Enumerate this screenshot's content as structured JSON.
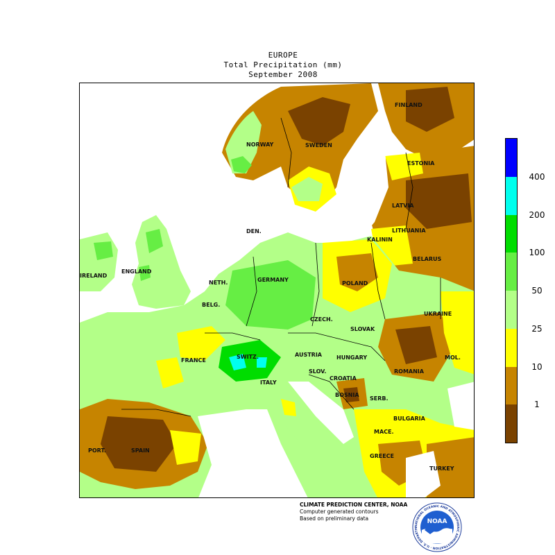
{
  "header": {
    "region": "EUROPE",
    "variable": "Total Precipitation (mm)",
    "period": "September 2008"
  },
  "legend": {
    "bins": [
      {
        "color": "#7a4200"
      },
      {
        "color": "#c68400"
      },
      {
        "color": "#ffff00"
      },
      {
        "color": "#b3ff88"
      },
      {
        "color": "#66ee44"
      },
      {
        "color": "#00dd00"
      },
      {
        "color": "#00ffee"
      },
      {
        "color": "#0000ff"
      }
    ],
    "ticks": [
      "1",
      "10",
      "25",
      "50",
      "100",
      "200",
      "400"
    ]
  },
  "countries": {
    "finland": "FINLAND",
    "norway": "NORWAY",
    "sweden": "SWEDEN",
    "estonia": "ESTONIA",
    "latvia": "LATVIA",
    "lithuania": "LITHUANIA",
    "kalinin": "KALININ",
    "belarus": "BELARUS",
    "denmark": "DEN.",
    "england": "ENGLAND",
    "ireland": "IRELAND",
    "neth": "NETH.",
    "germany": "GERMANY",
    "poland": "POLAND",
    "belg": "BELG.",
    "czech": "CZECH.",
    "slovak": "SLOVAK",
    "ukraine": "UKRAINE",
    "france": "FRANCE",
    "switz": "SWITZ.",
    "austria": "AUSTRIA",
    "hungary": "HUNGARY",
    "mol": "MOL.",
    "romania": "ROMANIA",
    "slov": "SLOV.",
    "croatia": "CROATIA",
    "italy": "ITALY",
    "bosnia": "BOSNIA",
    "serb": "SERB.",
    "bulgaria": "BULGARIA",
    "mace": "MACE.",
    "port": "PORT.",
    "spain": "SPAIN",
    "greece": "GREECE",
    "turkey": "TURKEY"
  },
  "credits": {
    "line1": "CLIMATE PREDICTION CENTER, NOAA",
    "line2": "Computer generated contours",
    "line3": "Based on preliminary data"
  },
  "logo": {
    "text": "NOAA",
    "ring_text": "NATIONAL OCEANIC AND ATMOSPHERIC ADMINISTRATION · U.S. DEPARTMENT OF COMMERCE"
  }
}
